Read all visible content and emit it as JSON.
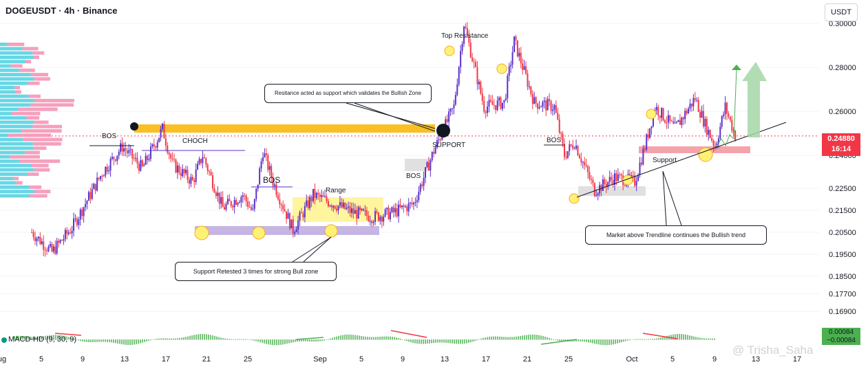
{
  "header": {
    "title": "DOGEUSDT · 4h · Binance",
    "unit": "USDT"
  },
  "price_tag": {
    "price": "0.24880",
    "countdown": "16:14"
  },
  "macd": {
    "label": "MACD-HD (9, 30, 9)",
    "value_top": "0.00084",
    "value_bottom": "−0.00084"
  },
  "watermark": "@ Trisha_Saha",
  "annotations": {
    "bos1": "BOS",
    "choch": "CHOCH",
    "bos2": "BOS",
    "range": "Range",
    "bos3": "BOS",
    "support_label": "SUPPORT",
    "top_resistance": "Top Resistance",
    "bos4": "BOS",
    "support2": "Support",
    "callout_resistance": "Resitance acted as support which validates the Bullish Zone",
    "callout_support": "Support Retested 3 times for strong Bull zone",
    "callout_trendline": "Market above Trendline continues the Bullish trend"
  },
  "colors": {
    "up": "#5b2fc9",
    "down": "#f23645",
    "zone": "#f9bf25",
    "support_zone": "#b39ddb",
    "range_zone": "#fff176",
    "macd_up": "#4caf50"
  },
  "chart_data": {
    "type": "candlestick",
    "ylim": [
      0.1625,
      0.3125
    ],
    "y_ticks": [
      "0.30000",
      "0.28000",
      "0.26000",
      "0.24000",
      "0.22500",
      "0.21500",
      "0.20500",
      "0.19500",
      "0.18500",
      "0.17700",
      "0.16900"
    ],
    "x_ticks": [
      "ug",
      "5",
      "9",
      "13",
      "17",
      "21",
      "25",
      "Sep",
      "5",
      "9",
      "13",
      "17",
      "21",
      "25",
      "Oct",
      "5",
      "9",
      "13",
      "17"
    ],
    "close_path": [
      {
        "x": "Aug 1",
        "y": 0.205
      },
      {
        "x": "Aug 3",
        "y": 0.196
      },
      {
        "x": "Aug 5",
        "y": 0.207
      },
      {
        "x": "Aug 8",
        "y": 0.232
      },
      {
        "x": "Aug 10",
        "y": 0.244
      },
      {
        "x": "Aug 12",
        "y": 0.234
      },
      {
        "x": "Aug 14",
        "y": 0.252
      },
      {
        "x": "Aug 15",
        "y": 0.236
      },
      {
        "x": "Aug 17",
        "y": 0.228
      },
      {
        "x": "Aug 18",
        "y": 0.24
      },
      {
        "x": "Aug 20",
        "y": 0.216
      },
      {
        "x": "Aug 22",
        "y": 0.222
      },
      {
        "x": "Aug 23",
        "y": 0.214
      },
      {
        "x": "Aug 24",
        "y": 0.242
      },
      {
        "x": "Aug 25",
        "y": 0.228
      },
      {
        "x": "Aug 27",
        "y": 0.206
      },
      {
        "x": "Aug 29",
        "y": 0.222
      },
      {
        "x": "Aug 31",
        "y": 0.218
      },
      {
        "x": "Sep 2",
        "y": 0.214
      },
      {
        "x": "Sep 4",
        "y": 0.212
      },
      {
        "x": "Sep 6",
        "y": 0.214
      },
      {
        "x": "Sep 8",
        "y": 0.218
      },
      {
        "x": "Sep 10",
        "y": 0.242
      },
      {
        "x": "Sep 12",
        "y": 0.262
      },
      {
        "x": "Sep 13",
        "y": 0.3
      },
      {
        "x": "Sep 15",
        "y": 0.262
      },
      {
        "x": "Sep 17",
        "y": 0.264
      },
      {
        "x": "Sep 18",
        "y": 0.292
      },
      {
        "x": "Sep 20",
        "y": 0.264
      },
      {
        "x": "Sep 22",
        "y": 0.262
      },
      {
        "x": "Sep 23",
        "y": 0.24
      },
      {
        "x": "Sep 24",
        "y": 0.246
      },
      {
        "x": "Sep 26",
        "y": 0.224
      },
      {
        "x": "Sep 28",
        "y": 0.23
      },
      {
        "x": "Sep 30",
        "y": 0.228
      },
      {
        "x": "Oct 1",
        "y": 0.244
      },
      {
        "x": "Oct 2",
        "y": 0.262
      },
      {
        "x": "Oct 4",
        "y": 0.252
      },
      {
        "x": "Oct 6",
        "y": 0.266
      },
      {
        "x": "Oct 7",
        "y": 0.254
      },
      {
        "x": "Oct 8",
        "y": 0.244
      },
      {
        "x": "Oct 9",
        "y": 0.262
      },
      {
        "x": "Oct 10",
        "y": 0.2488
      }
    ],
    "last_price": 0.2488
  }
}
